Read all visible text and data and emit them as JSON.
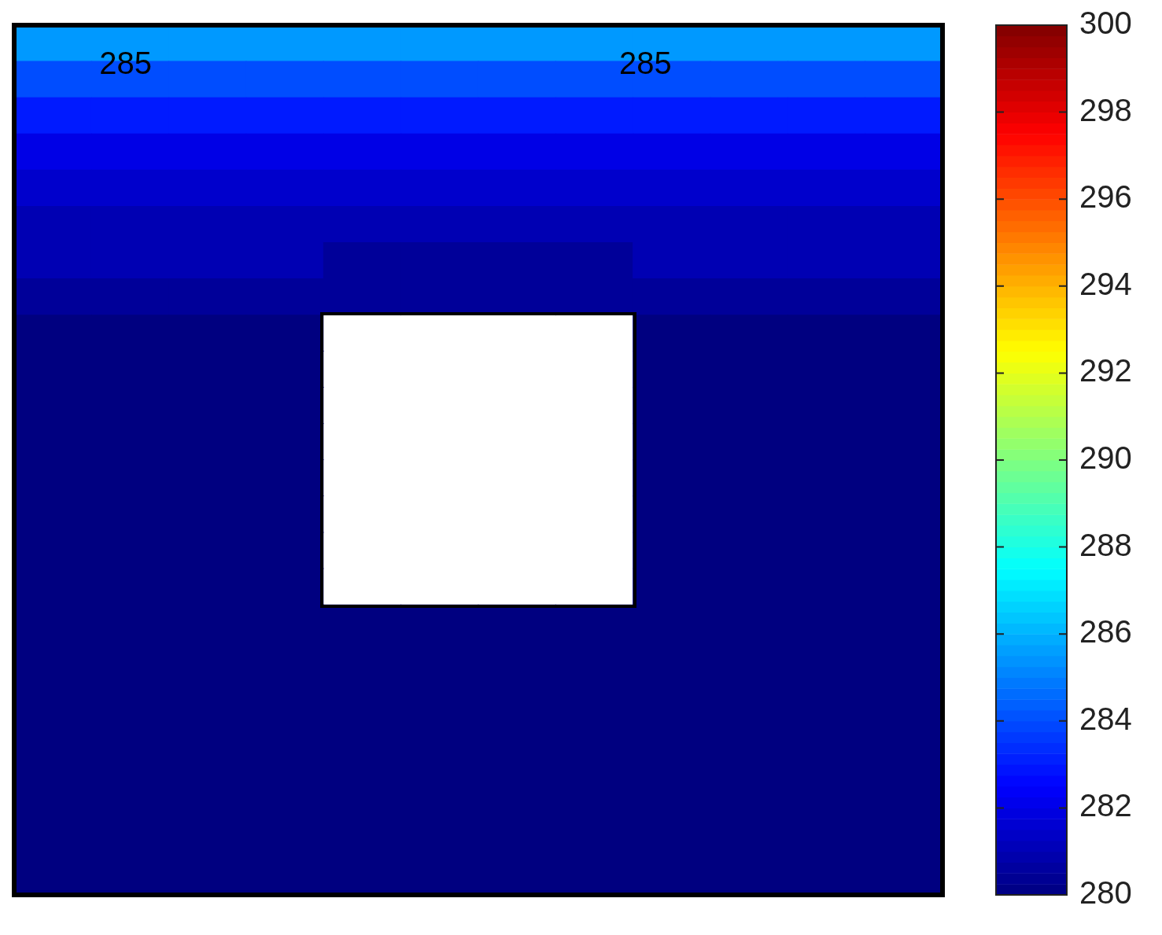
{
  "chart_data": {
    "type": "heatmap",
    "categories": [
      null,
      null,
      null,
      null,
      null,
      null,
      null,
      null,
      null,
      null,
      null,
      null
    ],
    "y_categories": [
      null,
      null,
      null,
      null,
      null,
      null,
      null,
      null,
      null,
      null,
      null,
      null,
      null,
      null,
      null,
      null,
      null,
      null,
      null,
      null,
      null,
      null,
      null,
      null
    ],
    "cells": [
      [
        285.5,
        285.5,
        285.5,
        285.5,
        285.5,
        285.5,
        285.5,
        285.5,
        285.5,
        285.5,
        285.5,
        285.5
      ],
      [
        284,
        284,
        284,
        284,
        284,
        284,
        284,
        284,
        284,
        284,
        284,
        284
      ],
      [
        283,
        283,
        283,
        283,
        283,
        283,
        283,
        283,
        283,
        283,
        283,
        283
      ],
      [
        282,
        282,
        282,
        282,
        282,
        282,
        282,
        282,
        282,
        282,
        282,
        282
      ],
      [
        281.5,
        281.5,
        281.5,
        281.5,
        281.5,
        281.5,
        281.5,
        281.5,
        281.5,
        281.5,
        281.5,
        281.5
      ],
      [
        281,
        281,
        281,
        281,
        281,
        281,
        281,
        281,
        281,
        281,
        281,
        281
      ],
      [
        281,
        281,
        281,
        281,
        280.5,
        280.5,
        280.5,
        280.5,
        281,
        281,
        281,
        281
      ],
      [
        280.5,
        280.5,
        280.5,
        280.5,
        280.5,
        280.5,
        280.5,
        280.5,
        280.5,
        280.5,
        280.5,
        280.5
      ],
      [
        280,
        280,
        280,
        280,
        null,
        null,
        null,
        null,
        280,
        280,
        280,
        280
      ],
      [
        280,
        280,
        280,
        280,
        null,
        null,
        null,
        null,
        280,
        280,
        280,
        280
      ],
      [
        280,
        280,
        280,
        280,
        null,
        null,
        null,
        null,
        280,
        280,
        280,
        280
      ],
      [
        280,
        280,
        280,
        280,
        null,
        null,
        null,
        null,
        280,
        280,
        280,
        280
      ],
      [
        280,
        280,
        280,
        280,
        null,
        null,
        null,
        null,
        280,
        280,
        280,
        280
      ],
      [
        280,
        280,
        280,
        280,
        null,
        null,
        null,
        null,
        280,
        280,
        280,
        280
      ],
      [
        280,
        280,
        280,
        280,
        null,
        null,
        null,
        null,
        280,
        280,
        280,
        280
      ],
      [
        280,
        280,
        280,
        280,
        null,
        null,
        null,
        null,
        280,
        280,
        280,
        280
      ],
      [
        280,
        280,
        280,
        280,
        280,
        280,
        280,
        280,
        280,
        280,
        280,
        280
      ],
      [
        280,
        280,
        280,
        280,
        280,
        280,
        280,
        280,
        280,
        280,
        280,
        280
      ],
      [
        280,
        280,
        280,
        280,
        280,
        280,
        280,
        280,
        280,
        280,
        280,
        280
      ],
      [
        280,
        280,
        280,
        280,
        280,
        280,
        280,
        280,
        280,
        280,
        280,
        280
      ],
      [
        280,
        280,
        280,
        280,
        280,
        280,
        280,
        280,
        280,
        280,
        280,
        280
      ],
      [
        280,
        280,
        280,
        280,
        280,
        280,
        280,
        280,
        280,
        280,
        280,
        280
      ],
      [
        280,
        280,
        280,
        280,
        280,
        280,
        280,
        280,
        280,
        280,
        280,
        280
      ],
      [
        280,
        280,
        280,
        280,
        280,
        280,
        280,
        280,
        280,
        280,
        280,
        280
      ]
    ],
    "clim": [
      280,
      300
    ],
    "cticks": [
      280,
      282,
      284,
      286,
      288,
      290,
      292,
      294,
      296,
      298,
      300
    ],
    "annotations": [
      "285",
      "285"
    ]
  }
}
